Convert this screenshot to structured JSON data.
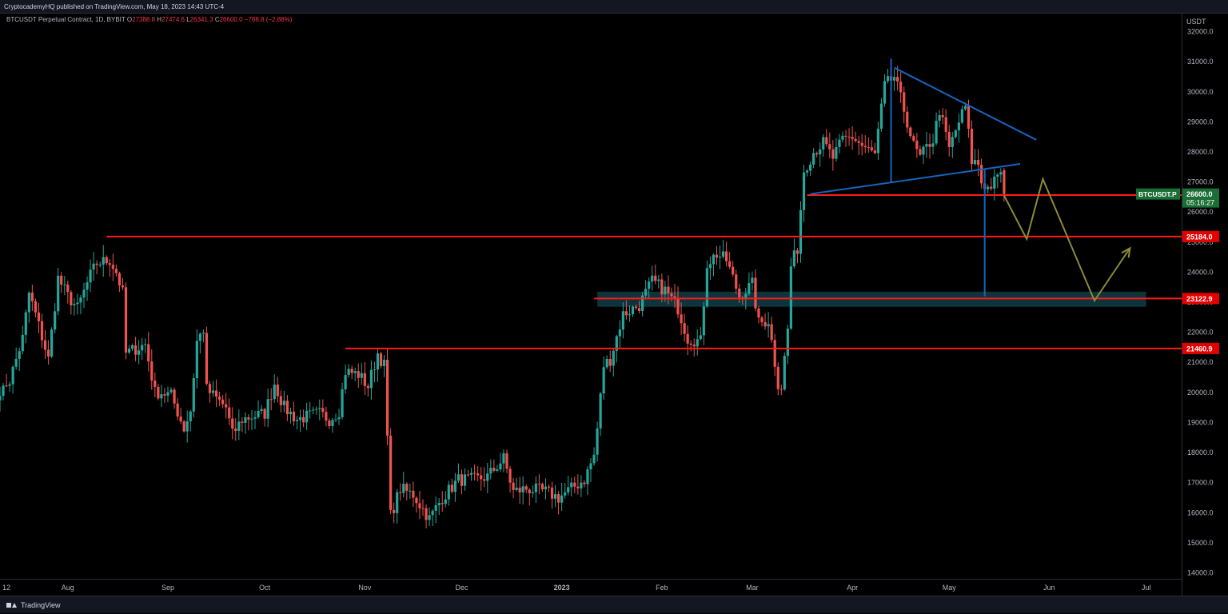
{
  "header": {
    "published": "CryptocademyHQ published on TradingView.com, May 18, 2023 14:43 UTC-4"
  },
  "legend": {
    "symbol": "BTCUSDT Perpetual Contract, 1D, BYBIT",
    "o_label": "O",
    "o": "27388.8",
    "h_label": "H",
    "h": "27474.6",
    "l_label": "L",
    "l": "26341.3",
    "c_label": "C",
    "c": "26600.0",
    "change": "−788.8 (−2.88%)"
  },
  "footer": {
    "brand": "TradingView"
  },
  "colors": {
    "up": "#26a69a",
    "down": "#ef5350",
    "level": "#ff1a1a",
    "pattern": "#1565c0",
    "projection": "#8b8b3a",
    "zone": "#0f3d45",
    "last_price_tag": "#1b6e35",
    "level_tag": "#e50000"
  },
  "chart_data": {
    "type": "candlestick",
    "title": "",
    "y_axis_title": "USDT",
    "y_range": [
      13800,
      32600
    ],
    "y_ticks": [
      "14000.0",
      "15000.0",
      "16000.0",
      "17000.0",
      "18000.0",
      "19000.0",
      "20000.0",
      "21000.0",
      "22000.0",
      "23000.0",
      "24000.0",
      "25000.0",
      "26000.0",
      "27000.0",
      "28000.0",
      "29000.0",
      "30000.0",
      "31000.0",
      "32000.0"
    ],
    "x_range": [
      "2022-07-11",
      "2023-07-12"
    ],
    "x_ticks": [
      {
        "label": "12",
        "date": "2022-07-12"
      },
      {
        "label": "Aug",
        "date": "2022-08-01"
      },
      {
        "label": "Sep",
        "date": "2022-09-01"
      },
      {
        "label": "Oct",
        "date": "2022-10-01"
      },
      {
        "label": "Nov",
        "date": "2022-11-01"
      },
      {
        "label": "Dec",
        "date": "2022-12-01"
      },
      {
        "label": "2023",
        "date": "2023-01-01",
        "bold": true
      },
      {
        "label": "Feb",
        "date": "2023-02-01"
      },
      {
        "label": "Mar",
        "date": "2023-03-01"
      },
      {
        "label": "Apr",
        "date": "2023-04-01"
      },
      {
        "label": "May",
        "date": "2023-05-01"
      },
      {
        "label": "Jun",
        "date": "2023-06-01"
      },
      {
        "label": "Jul",
        "date": "2023-07-01"
      }
    ],
    "close_path": [
      [
        "2022-07-11",
        20000
      ],
      [
        "2022-07-14",
        20400
      ],
      [
        "2022-07-18",
        21800
      ],
      [
        "2022-07-20",
        23300
      ],
      [
        "2022-07-22",
        22600
      ],
      [
        "2022-07-26",
        21100
      ],
      [
        "2022-07-29",
        23800
      ],
      [
        "2022-08-01",
        23200
      ],
      [
        "2022-08-04",
        22800
      ],
      [
        "2022-08-08",
        23900
      ],
      [
        "2022-08-10",
        24300
      ],
      [
        "2022-08-14",
        24400
      ],
      [
        "2022-08-16",
        24000
      ],
      [
        "2022-08-18",
        23300
      ],
      [
        "2022-08-19",
        21300
      ],
      [
        "2022-08-21",
        21400
      ],
      [
        "2022-08-25",
        21600
      ],
      [
        "2022-08-28",
        20000
      ],
      [
        "2022-08-30",
        20000
      ],
      [
        "2022-09-02",
        19900
      ],
      [
        "2022-09-06",
        18800
      ],
      [
        "2022-09-08",
        19400
      ],
      [
        "2022-09-10",
        21700
      ],
      [
        "2022-09-12",
        22100
      ],
      [
        "2022-09-13",
        20100
      ],
      [
        "2022-09-16",
        19800
      ],
      [
        "2022-09-19",
        19500
      ],
      [
        "2022-09-21",
        18600
      ],
      [
        "2022-09-24",
        19100
      ],
      [
        "2022-09-27",
        19200
      ],
      [
        "2022-10-01",
        19300
      ],
      [
        "2022-10-04",
        20300
      ],
      [
        "2022-10-07",
        19500
      ],
      [
        "2022-10-11",
        19100
      ],
      [
        "2022-10-14",
        19200
      ],
      [
        "2022-10-18",
        19300
      ],
      [
        "2022-10-21",
        19100
      ],
      [
        "2022-10-24",
        19400
      ],
      [
        "2022-10-26",
        20700
      ],
      [
        "2022-10-30",
        20600
      ],
      [
        "2022-11-02",
        20200
      ],
      [
        "2022-11-05",
        21300
      ],
      [
        "2022-11-07",
        20900
      ],
      [
        "2022-11-08",
        18500
      ],
      [
        "2022-11-09",
        15900
      ],
      [
        "2022-11-12",
        16800
      ],
      [
        "2022-11-16",
        16600
      ],
      [
        "2022-11-21",
        15800
      ],
      [
        "2022-11-25",
        16500
      ],
      [
        "2022-11-30",
        17100
      ],
      [
        "2022-12-05",
        17100
      ],
      [
        "2022-12-09",
        17200
      ],
      [
        "2022-12-14",
        17800
      ],
      [
        "2022-12-17",
        16700
      ],
      [
        "2022-12-21",
        16800
      ],
      [
        "2022-12-27",
        16700
      ],
      [
        "2022-12-31",
        16500
      ],
      [
        "2023-01-04",
        16800
      ],
      [
        "2023-01-08",
        17100
      ],
      [
        "2023-01-11",
        17900
      ],
      [
        "2023-01-12",
        18800
      ],
      [
        "2023-01-14",
        20900
      ],
      [
        "2023-01-16",
        21100
      ],
      [
        "2023-01-20",
        22600
      ],
      [
        "2023-01-25",
        22900
      ],
      [
        "2023-01-29",
        23700
      ],
      [
        "2023-02-02",
        23400
      ],
      [
        "2023-02-06",
        22800
      ],
      [
        "2023-02-09",
        21800
      ],
      [
        "2023-02-13",
        21700
      ],
      [
        "2023-02-15",
        24300
      ],
      [
        "2023-02-18",
        24600
      ],
      [
        "2023-02-21",
        24400
      ],
      [
        "2023-02-25",
        23200
      ],
      [
        "2023-03-01",
        23600
      ],
      [
        "2023-03-03",
        22300
      ],
      [
        "2023-03-06",
        22400
      ],
      [
        "2023-03-09",
        20300
      ],
      [
        "2023-03-10",
        20200
      ],
      [
        "2023-03-12",
        22100
      ],
      [
        "2023-03-13",
        24200
      ],
      [
        "2023-03-15",
        24800
      ],
      [
        "2023-03-17",
        27400
      ],
      [
        "2023-03-20",
        28000
      ],
      [
        "2023-03-23",
        28300
      ],
      [
        "2023-03-26",
        27800
      ],
      [
        "2023-03-29",
        28400
      ],
      [
        "2023-04-01",
        28500
      ],
      [
        "2023-04-04",
        28200
      ],
      [
        "2023-04-08",
        27900
      ],
      [
        "2023-04-11",
        30200
      ],
      [
        "2023-04-14",
        30500
      ],
      [
        "2023-04-17",
        29400
      ],
      [
        "2023-04-20",
        28200
      ],
      [
        "2023-04-22",
        27800
      ],
      [
        "2023-04-25",
        28300
      ],
      [
        "2023-04-26",
        28400
      ],
      [
        "2023-04-28",
        29400
      ],
      [
        "2023-05-01",
        28100
      ],
      [
        "2023-05-04",
        29000
      ],
      [
        "2023-05-06",
        29500
      ],
      [
        "2023-05-08",
        27700
      ],
      [
        "2023-05-10",
        27600
      ],
      [
        "2023-05-11",
        27000
      ],
      [
        "2023-05-13",
        26800
      ],
      [
        "2023-05-16",
        27100
      ],
      [
        "2023-05-17",
        27400
      ],
      [
        "2023-05-18",
        26600
      ]
    ],
    "horizontal_levels": [
      {
        "price": 26565.3,
        "from": "2023-03-18",
        "label": "26565.3"
      },
      {
        "price": 25184.0,
        "from": "2022-08-13",
        "label": "25184.0"
      },
      {
        "price": 23122.9,
        "from": "2023-01-11",
        "label": "23122.9"
      },
      {
        "price": 21460.9,
        "from": "2022-10-26",
        "label": "21460.9"
      }
    ],
    "demand_zone": {
      "from": "2023-01-12",
      "to": "2023-07-01",
      "low": 22850,
      "high": 23350
    },
    "last_price": {
      "symbol": "BTCUSDT.P",
      "price": "26600.0",
      "countdown": "05:16:27"
    },
    "triangle": {
      "upper": [
        [
          "2023-04-14",
          30800
        ],
        [
          "2023-05-28",
          28400
        ]
      ],
      "lower": [
        [
          "2023-03-19",
          26600
        ],
        [
          "2023-05-23",
          27600
        ]
      ],
      "left_leg": [
        [
          "2023-04-13",
          31100
        ],
        [
          "2023-04-13",
          27000
        ]
      ],
      "measured_move": [
        [
          "2023-05-12",
          27400
        ],
        [
          "2023-05-12",
          23200
        ]
      ]
    },
    "projection_path": [
      [
        "2023-05-18",
        26550
      ],
      [
        "2023-05-25",
        25100
      ],
      [
        "2023-05-30",
        27100
      ],
      [
        "2023-06-15",
        23050
      ],
      [
        "2023-06-26",
        24800
      ]
    ]
  }
}
